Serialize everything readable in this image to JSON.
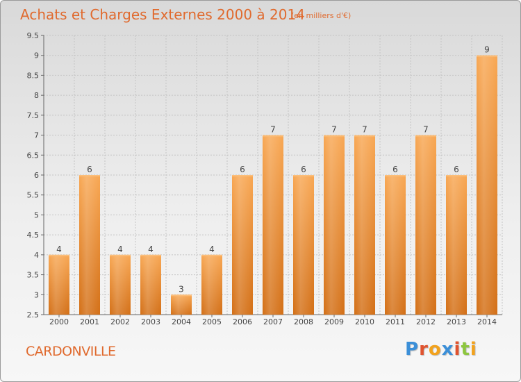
{
  "header": {
    "title": "Achats et Charges Externes 2000 à 2014",
    "subtitle": "(en milliers d'€)"
  },
  "footer": {
    "place": "CARDONVILLE",
    "logo_text": "Proxiti",
    "logo_colors": [
      "#3b8fd8",
      "#e0532f",
      "#f2a21d",
      "#3b8fd8",
      "#e0532f",
      "#8dc63f",
      "#f2a21d"
    ]
  },
  "colors": {
    "bar_top": "#f8a753",
    "bar_bottom": "#d36f16",
    "accent": "#e06a2e"
  },
  "chart_data": {
    "type": "bar",
    "categories": [
      "2000",
      "2001",
      "2002",
      "2003",
      "2004",
      "2005",
      "2006",
      "2007",
      "2008",
      "2009",
      "2010",
      "2011",
      "2012",
      "2013",
      "2014"
    ],
    "values": [
      4,
      6,
      4,
      4,
      3,
      4,
      6,
      7,
      6,
      7,
      7,
      6,
      7,
      6,
      9
    ],
    "data_labels": [
      "4",
      "6",
      "4",
      "4",
      "3",
      "4",
      "6",
      "7",
      "6",
      "7",
      "7",
      "6",
      "7",
      "6",
      "9"
    ],
    "ylim": [
      2.5,
      9.5
    ],
    "yticks": [
      "2.5",
      "3",
      "3.5",
      "4",
      "4.5",
      "5",
      "5.5",
      "6",
      "6.5",
      "7",
      "7.5",
      "8",
      "8.5",
      "9",
      "9.5"
    ],
    "grid": true
  }
}
